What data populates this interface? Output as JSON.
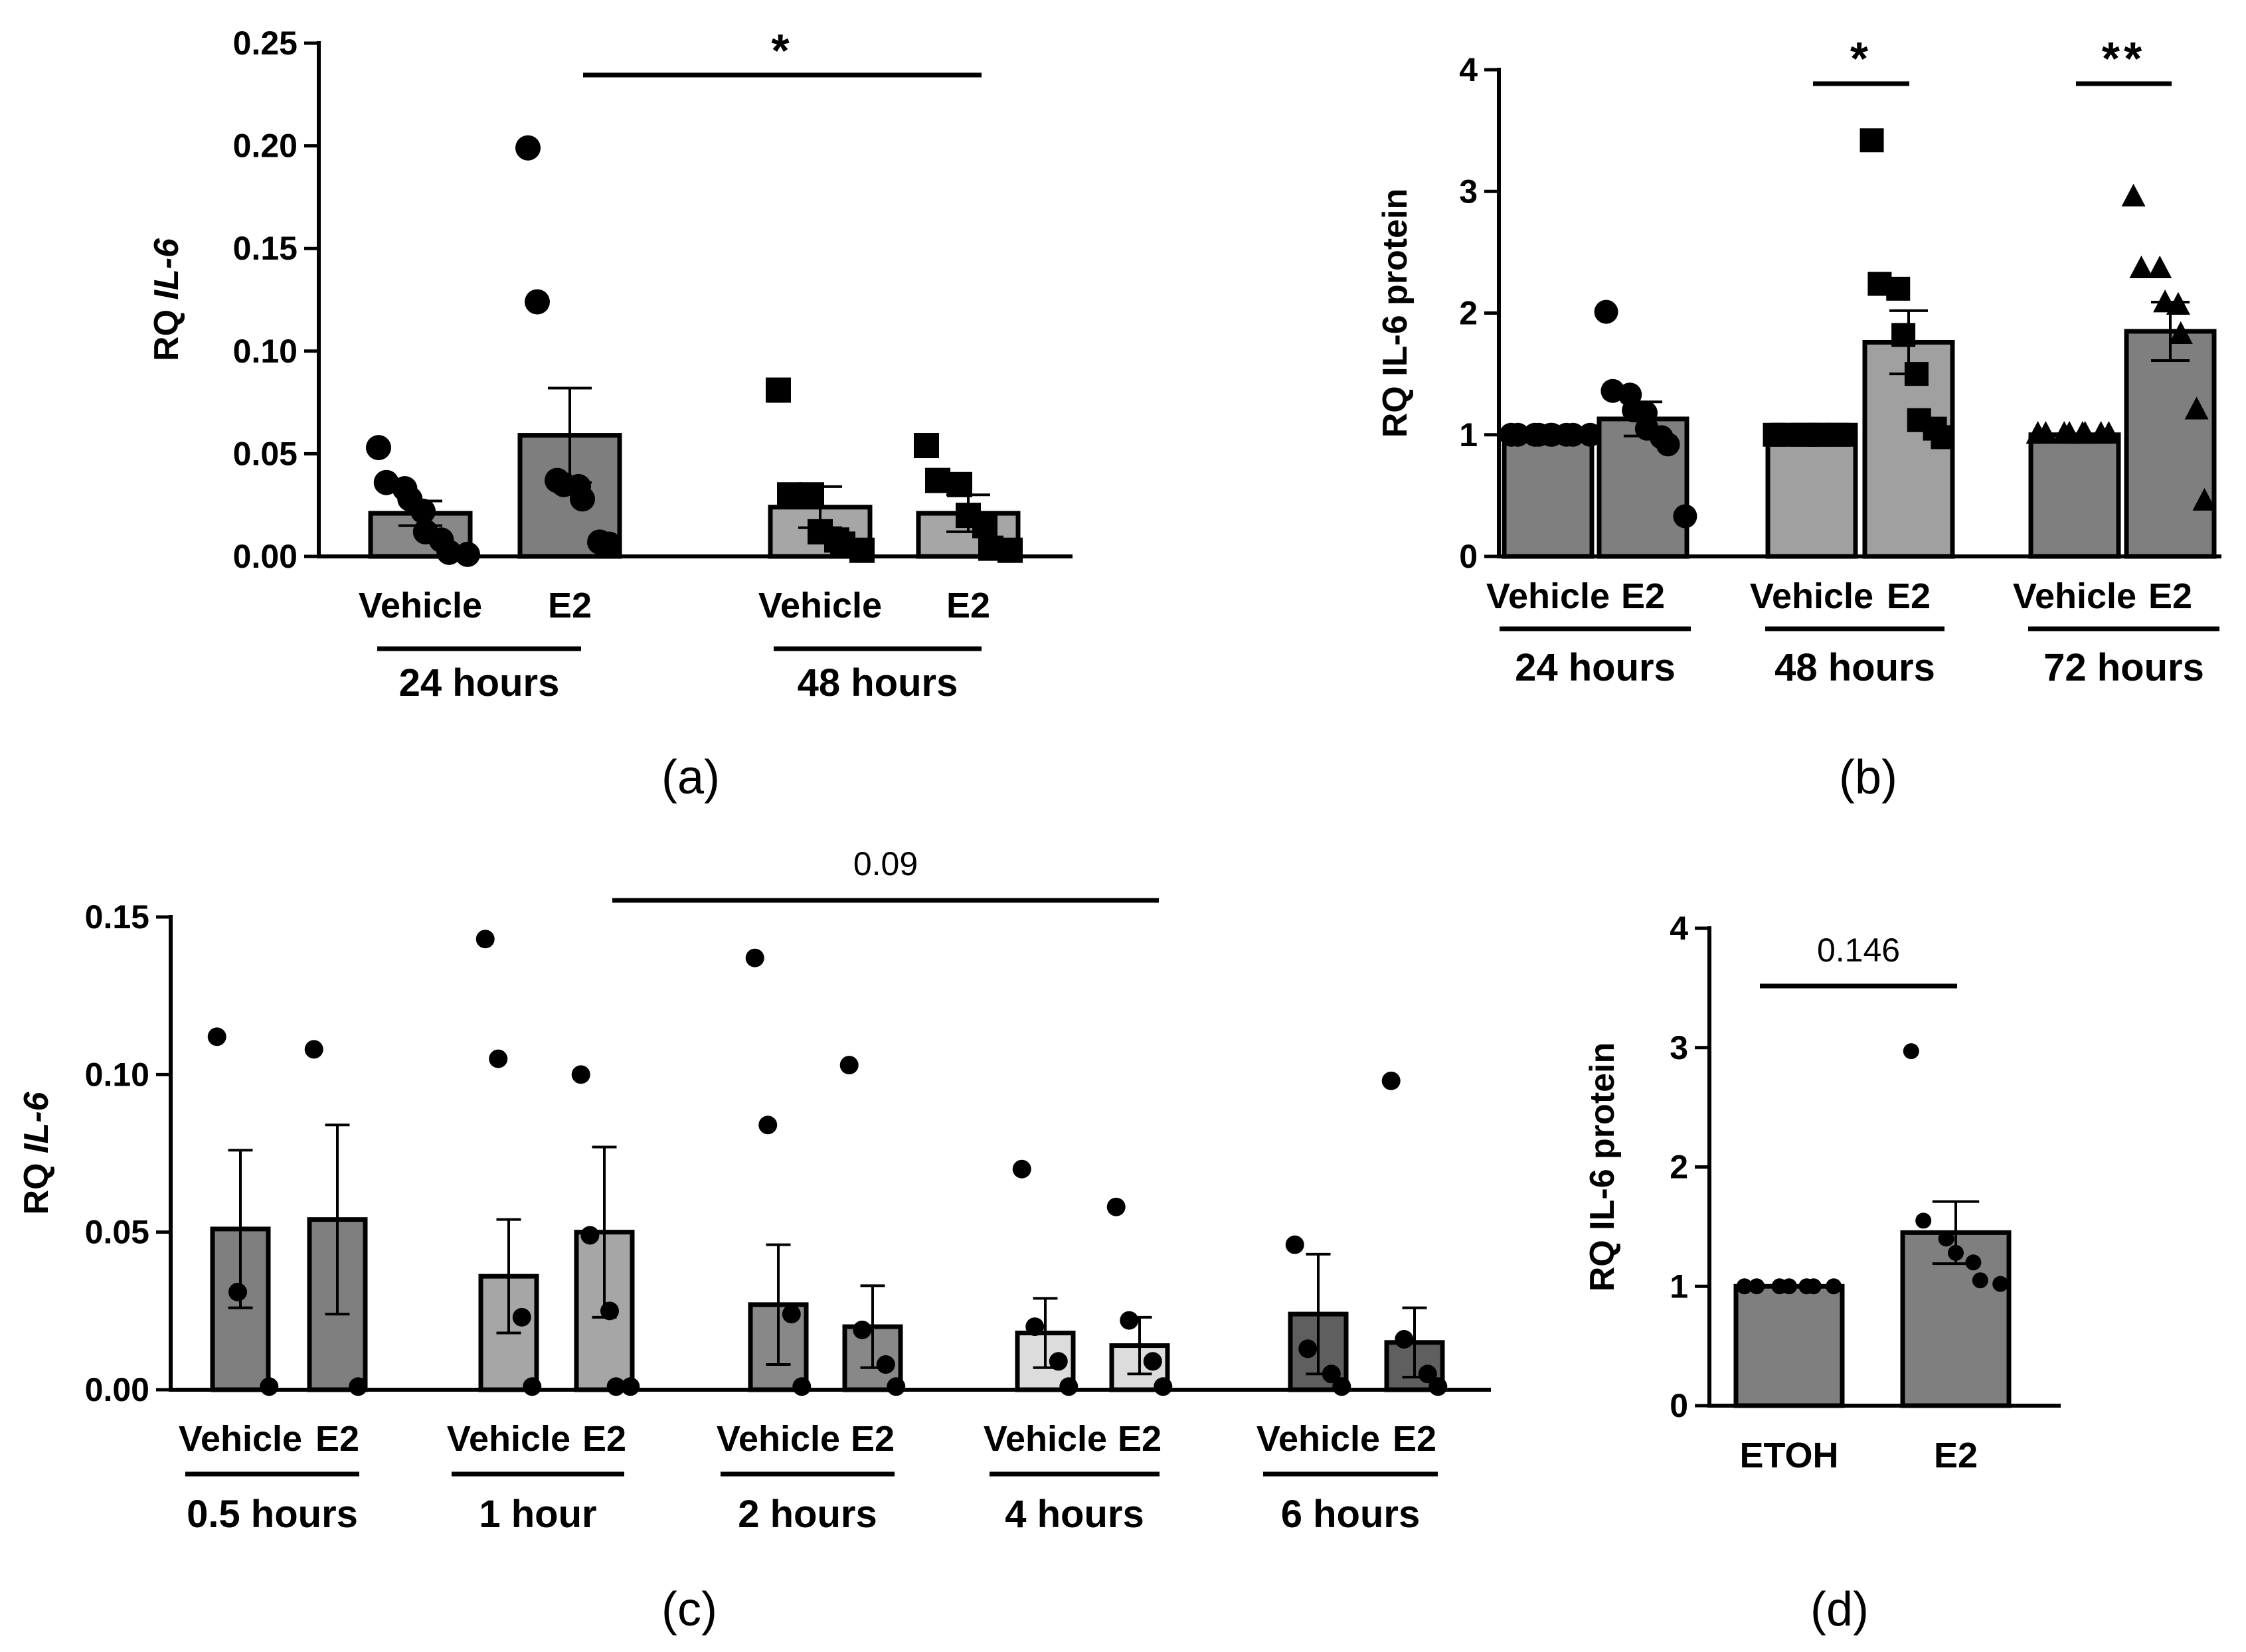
{
  "chart_data": [
    {
      "id": "a",
      "type": "bar",
      "panel_label": "(a)",
      "ylabel_prefix": "RQ ",
      "ylabel_gene": "IL-6",
      "ylim": [
        0,
        0.25
      ],
      "yticks": [
        0.0,
        0.05,
        0.1,
        0.15,
        0.2,
        0.25
      ],
      "ytick_labels": [
        "0.00",
        "0.05",
        "0.10",
        "0.15",
        "0.20",
        "0.25"
      ],
      "bars": [
        {
          "label": "Vehicle",
          "group": "24 hours",
          "mean": 0.021,
          "sem": 0.006,
          "color": "#888888",
          "marker": "circle",
          "points": [
            0.053,
            0.036,
            0.033,
            0.028,
            0.022,
            0.012,
            0.008,
            0.002,
            0.001
          ]
        },
        {
          "label": "E2",
          "group": "24 hours",
          "mean": 0.059,
          "sem": 0.023,
          "color": "#7e7e7e",
          "marker": "circle",
          "points": [
            0.199,
            0.124,
            0.037,
            0.035,
            0.034,
            0.028,
            0.007,
            0.006
          ]
        },
        {
          "label": "Vehicle",
          "group": "48 hours",
          "mean": 0.024,
          "sem": 0.01,
          "color": "#a6a6a6",
          "marker": "square",
          "points": [
            0.081,
            0.03,
            0.03,
            0.012,
            0.008,
            0.006,
            0.003
          ]
        },
        {
          "label": "E2",
          "group": "48 hours",
          "mean": 0.021,
          "sem": 0.009,
          "color": "#a6a6a6",
          "marker": "square",
          "points": [
            0.054,
            0.037,
            0.035,
            0.02,
            0.015,
            0.004,
            0.003
          ]
        }
      ],
      "groups": [
        "24 hours",
        "48 hours"
      ],
      "significance": [
        {
          "from": 1,
          "to": 3,
          "label": "*"
        }
      ]
    },
    {
      "id": "b",
      "type": "bar",
      "panel_label": "(b)",
      "ylabel": "RQ IL-6 protein",
      "ylim": [
        0,
        4
      ],
      "yticks": [
        0,
        1,
        2,
        3,
        4
      ],
      "ytick_labels": [
        "0",
        "1",
        "2",
        "3",
        "4"
      ],
      "bars": [
        {
          "label": "Vehicle",
          "group": "24 hours",
          "mean": 1.0,
          "sem": 0,
          "color": "#7f7f7f",
          "marker": "circle",
          "points": [
            1,
            1,
            1,
            1,
            1,
            1,
            1,
            1,
            1
          ]
        },
        {
          "label": "E2",
          "group": "24 hours",
          "mean": 1.13,
          "sem": 0.14,
          "color": "#7f7f7f",
          "marker": "circle",
          "points": [
            2.01,
            1.36,
            1.33,
            1.2,
            1.18,
            1.05,
            0.98,
            0.92,
            0.33
          ]
        },
        {
          "label": "Vehicle",
          "group": "48 hours",
          "mean": 1.0,
          "sem": 0,
          "color": "#a0a0a0",
          "marker": "square",
          "points": [
            1,
            1,
            1,
            1,
            1,
            1,
            1,
            1
          ]
        },
        {
          "label": "E2",
          "group": "48 hours",
          "mean": 1.76,
          "sem": 0.26,
          "color": "#a0a0a0",
          "marker": "square",
          "points": [
            3.42,
            2.24,
            2.2,
            1.82,
            1.5,
            1.12,
            1.05,
            0.98
          ]
        },
        {
          "label": "Vehicle",
          "group": "72 hours",
          "mean": 1.0,
          "sem": 0,
          "color": "#7f7f7f",
          "marker": "triangle",
          "points": [
            1,
            1,
            1,
            1,
            1,
            1,
            1,
            1
          ]
        },
        {
          "label": "E2",
          "group": "72 hours",
          "mean": 1.85,
          "sem": 0.24,
          "color": "#7f7f7f",
          "marker": "triangle",
          "points": [
            2.95,
            2.36,
            2.36,
            2.08,
            2.06,
            1.82,
            1.2,
            0.45
          ]
        }
      ],
      "groups": [
        "24 hours",
        "48 hours",
        "72 hours"
      ],
      "significance": [
        {
          "from": 2,
          "to": 3,
          "label": "*"
        },
        {
          "from": 4,
          "to": 5,
          "label": "**"
        }
      ]
    },
    {
      "id": "c",
      "type": "bar",
      "panel_label": "(c)",
      "ylabel_prefix": "RQ ",
      "ylabel_gene": "IL-6",
      "ylim": [
        0,
        0.15
      ],
      "yticks": [
        0.0,
        0.05,
        0.1,
        0.15
      ],
      "ytick_labels": [
        "0.00",
        "0.05",
        "0.10",
        "0.15"
      ],
      "bars": [
        {
          "label": "Vehicle",
          "group": "0.5 hours",
          "mean": 0.051,
          "sem": 0.025,
          "color": "#7f7f7f",
          "marker": "circle",
          "points": [
            0.112,
            0.031,
            0.001
          ]
        },
        {
          "label": "E2",
          "group": "0.5 hours",
          "mean": 0.054,
          "sem": 0.03,
          "color": "#7f7f7f",
          "marker": "circle",
          "points": [
            0.108,
            0.001
          ]
        },
        {
          "label": "Vehicle",
          "group": "1 hour",
          "mean": 0.036,
          "sem": 0.018,
          "color": "#a6a6a6",
          "marker": "circle",
          "points": [
            0.143,
            0.105,
            0.023,
            0.001
          ]
        },
        {
          "label": "E2",
          "group": "1 hour",
          "mean": 0.05,
          "sem": 0.027,
          "color": "#a6a6a6",
          "marker": "circle",
          "points": [
            0.1,
            0.049,
            0.025,
            0.001,
            0.001
          ]
        },
        {
          "label": "Vehicle",
          "group": "2 hours",
          "mean": 0.027,
          "sem": 0.019,
          "color": "#888888",
          "marker": "circle",
          "points": [
            0.137,
            0.084,
            0.024,
            0.001
          ]
        },
        {
          "label": "E2",
          "group": "2 hours",
          "mean": 0.02,
          "sem": 0.013,
          "color": "#888888",
          "marker": "circle",
          "points": [
            0.103,
            0.019,
            0.008,
            0.001
          ]
        },
        {
          "label": "Vehicle",
          "group": "4 hours",
          "mean": 0.018,
          "sem": 0.011,
          "color": "#dcdcdc",
          "marker": "circle",
          "points": [
            0.07,
            0.02,
            0.009,
            0.001
          ]
        },
        {
          "label": "E2",
          "group": "4 hours",
          "mean": 0.014,
          "sem": 0.009,
          "color": "#dcdcdc",
          "marker": "circle",
          "points": [
            0.058,
            0.022,
            0.009,
            0.001
          ]
        },
        {
          "label": "Vehicle",
          "group": "6 hours",
          "mean": 0.024,
          "sem": 0.019,
          "color": "#5f5f5f",
          "marker": "circle",
          "points": [
            0.046,
            0.013,
            0.005,
            0.001
          ]
        },
        {
          "label": "E2",
          "group": "6 hours",
          "mean": 0.015,
          "sem": 0.011,
          "color": "#5f5f5f",
          "marker": "circle",
          "points": [
            0.098,
            0.016,
            0.005,
            0.001
          ]
        }
      ],
      "groups": [
        "0.5 hours",
        "1 hour",
        "2 hours",
        "4 hours",
        "6 hours"
      ],
      "significance": [
        {
          "from": 3,
          "to": 7,
          "label": "0.09"
        }
      ]
    },
    {
      "id": "d",
      "type": "bar",
      "panel_label": "(d)",
      "ylabel": "RQ IL-6 protein",
      "ylim": [
        0,
        4
      ],
      "yticks": [
        0,
        1,
        2,
        3,
        4
      ],
      "ytick_labels": [
        "0",
        "1",
        "2",
        "3",
        "4"
      ],
      "bars": [
        {
          "label": "ETOH",
          "group": "",
          "mean": 1.0,
          "sem": 0,
          "color": "#7f7f7f",
          "marker": "circle",
          "points": [
            1,
            1,
            1,
            1,
            1,
            1,
            1
          ]
        },
        {
          "label": "E2",
          "group": "",
          "mean": 1.45,
          "sem": 0.26,
          "color": "#7f7f7f",
          "marker": "circle",
          "points": [
            2.97,
            1.55,
            1.4,
            1.28,
            1.2,
            1.05,
            1.02
          ]
        }
      ],
      "groups": [],
      "significance": [
        {
          "from": 0,
          "to": 1,
          "label": "0.146"
        }
      ]
    }
  ]
}
